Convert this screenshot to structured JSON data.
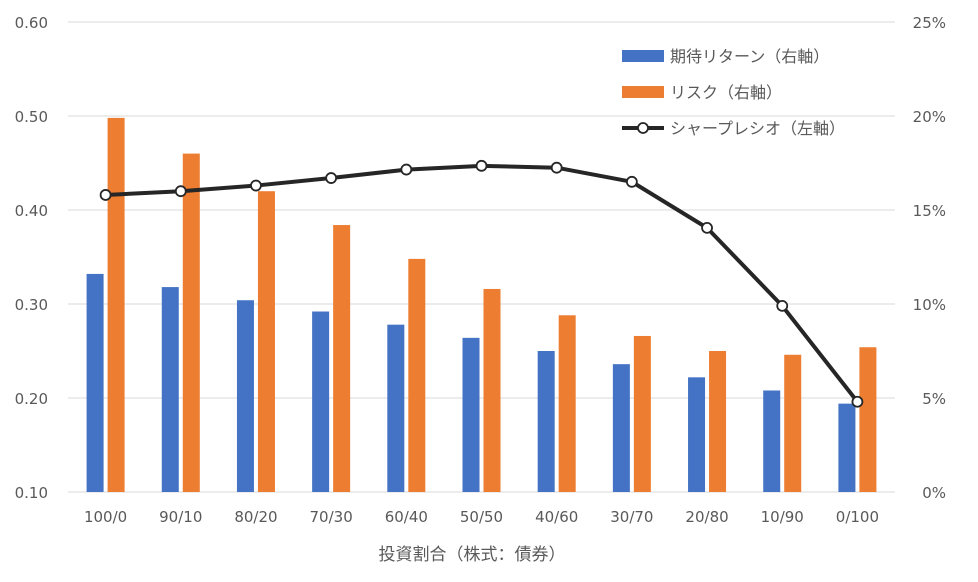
{
  "chart_data": {
    "type": "bar",
    "xlabel": "投資割合（株式：債券）",
    "categories": [
      "100/0",
      "90/10",
      "80/20",
      "70/30",
      "60/40",
      "50/50",
      "40/60",
      "30/70",
      "20/80",
      "10/90",
      "0/100"
    ],
    "series": [
      {
        "name": "期待リターン（右軸）",
        "type": "bar",
        "axis": "right",
        "color": "#4472C4",
        "values": [
          0.116,
          0.109,
          0.102,
          0.096,
          0.089,
          0.082,
          0.075,
          0.068,
          0.061,
          0.054,
          0.047
        ]
      },
      {
        "name": "リスク（右軸）",
        "type": "bar",
        "axis": "right",
        "color": "#ED7D31",
        "values": [
          0.199,
          0.18,
          0.16,
          0.142,
          0.124,
          0.108,
          0.094,
          0.083,
          0.075,
          0.073,
          0.077
        ]
      },
      {
        "name": "シャープレシオ（左軸）",
        "type": "line",
        "axis": "left",
        "color": "#262626",
        "values": [
          0.416,
          0.42,
          0.426,
          0.434,
          0.443,
          0.447,
          0.445,
          0.43,
          0.381,
          0.298,
          0.196
        ]
      }
    ],
    "left_axis": {
      "min": 0.1,
      "max": 0.6,
      "ticks": [
        "0.10",
        "0.20",
        "0.30",
        "0.40",
        "0.50",
        "0.60"
      ]
    },
    "right_axis": {
      "min": 0,
      "max": 0.25,
      "ticks": [
        "0%",
        "5%",
        "10%",
        "15%",
        "20%",
        "25%"
      ]
    },
    "grid": true,
    "legend_position": "top-right"
  }
}
